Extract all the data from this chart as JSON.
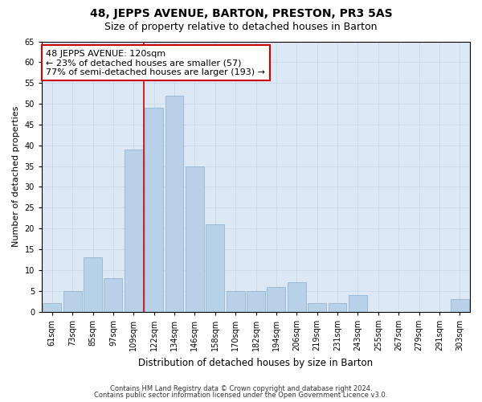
{
  "title": "48, JEPPS AVENUE, BARTON, PRESTON, PR3 5AS",
  "subtitle": "Size of property relative to detached houses in Barton",
  "xlabel": "Distribution of detached houses by size in Barton",
  "ylabel": "Number of detached properties",
  "categories": [
    "61sqm",
    "73sqm",
    "85sqm",
    "97sqm",
    "109sqm",
    "122sqm",
    "134sqm",
    "146sqm",
    "158sqm",
    "170sqm",
    "182sqm",
    "194sqm",
    "206sqm",
    "219sqm",
    "231sqm",
    "243sqm",
    "255sqm",
    "267sqm",
    "279sqm",
    "291sqm",
    "303sqm"
  ],
  "values": [
    2,
    5,
    13,
    8,
    39,
    49,
    52,
    35,
    21,
    5,
    5,
    6,
    7,
    2,
    2,
    4,
    0,
    0,
    0,
    0,
    3
  ],
  "bar_color": "#b8d0e8",
  "bar_edgecolor": "#8aaece",
  "vline_x_index": 4.5,
  "annotation_text": "48 JEPPS AVENUE: 120sqm\n← 23% of detached houses are smaller (57)\n77% of semi-detached houses are larger (193) →",
  "annotation_box_facecolor": "#ffffff",
  "annotation_box_edgecolor": "#cc0000",
  "vline_color": "#cc0000",
  "ylim": [
    0,
    65
  ],
  "yticks": [
    0,
    5,
    10,
    15,
    20,
    25,
    30,
    35,
    40,
    45,
    50,
    55,
    60,
    65
  ],
  "grid_color": "#c8d8e8",
  "plot_bg_color": "#dce9f5",
  "footer1": "Contains HM Land Registry data © Crown copyright and database right 2024.",
  "footer2": "Contains public sector information licensed under the Open Government Licence v3.0.",
  "title_fontsize": 10,
  "subtitle_fontsize": 9,
  "footer_fontsize": 6,
  "ylabel_fontsize": 8,
  "xlabel_fontsize": 8.5,
  "tick_fontsize": 7,
  "annot_fontsize": 8
}
